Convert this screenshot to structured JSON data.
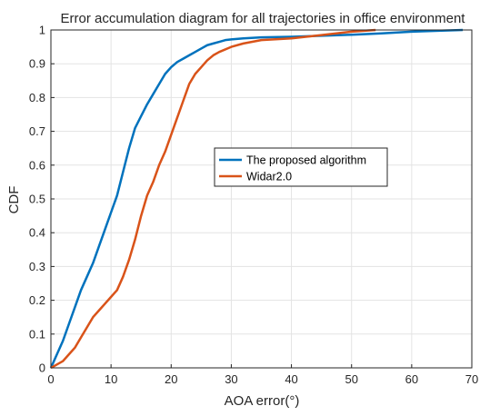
{
  "chart_data": {
    "type": "line",
    "title": "Error accumulation diagram for all trajectories in office environment",
    "xlabel": "AOA error(°)",
    "ylabel": "CDF",
    "xlim": [
      0,
      70
    ],
    "ylim": [
      0,
      1
    ],
    "xticks": [
      "0",
      "10",
      "20",
      "30",
      "40",
      "50",
      "60",
      "70"
    ],
    "yticks": [
      "0",
      "0.1",
      "0.2",
      "0.3",
      "0.4",
      "0.5",
      "0.6",
      "0.7",
      "0.8",
      "0.9",
      "1"
    ],
    "grid": true,
    "legend_position": "center-right",
    "series": [
      {
        "name": "The proposed algorithm",
        "color": "#0072BD",
        "x": [
          0,
          0.5,
          1,
          2,
          3,
          4,
          5,
          6,
          7,
          8,
          9,
          10,
          11,
          12,
          13,
          14,
          15,
          16,
          17,
          18,
          19,
          20,
          21,
          22,
          23,
          24,
          25,
          26,
          27,
          28,
          29,
          30,
          32,
          35,
          40,
          45,
          50,
          55,
          60,
          65,
          68.5
        ],
        "y": [
          0,
          0.02,
          0.04,
          0.08,
          0.13,
          0.18,
          0.23,
          0.27,
          0.31,
          0.36,
          0.41,
          0.46,
          0.51,
          0.58,
          0.65,
          0.71,
          0.745,
          0.78,
          0.81,
          0.84,
          0.87,
          0.89,
          0.905,
          0.915,
          0.925,
          0.935,
          0.945,
          0.955,
          0.96,
          0.965,
          0.97,
          0.972,
          0.975,
          0.978,
          0.98,
          0.983,
          0.986,
          0.99,
          0.995,
          0.998,
          1.0
        ]
      },
      {
        "name": "Widar2.0",
        "color": "#D95319",
        "x": [
          0,
          1,
          2,
          3,
          4,
          5,
          6,
          7,
          8,
          9,
          10,
          11,
          12,
          13,
          14,
          15,
          16,
          17,
          18,
          19,
          20,
          21,
          22,
          23,
          24,
          25,
          26,
          27,
          28,
          30,
          32,
          35,
          40,
          45,
          50,
          54
        ],
        "y": [
          0,
          0.01,
          0.02,
          0.04,
          0.06,
          0.09,
          0.12,
          0.15,
          0.17,
          0.19,
          0.21,
          0.23,
          0.27,
          0.32,
          0.38,
          0.45,
          0.51,
          0.55,
          0.6,
          0.64,
          0.69,
          0.74,
          0.79,
          0.84,
          0.87,
          0.89,
          0.91,
          0.925,
          0.935,
          0.95,
          0.96,
          0.97,
          0.975,
          0.985,
          0.995,
          1.0
        ]
      }
    ]
  }
}
